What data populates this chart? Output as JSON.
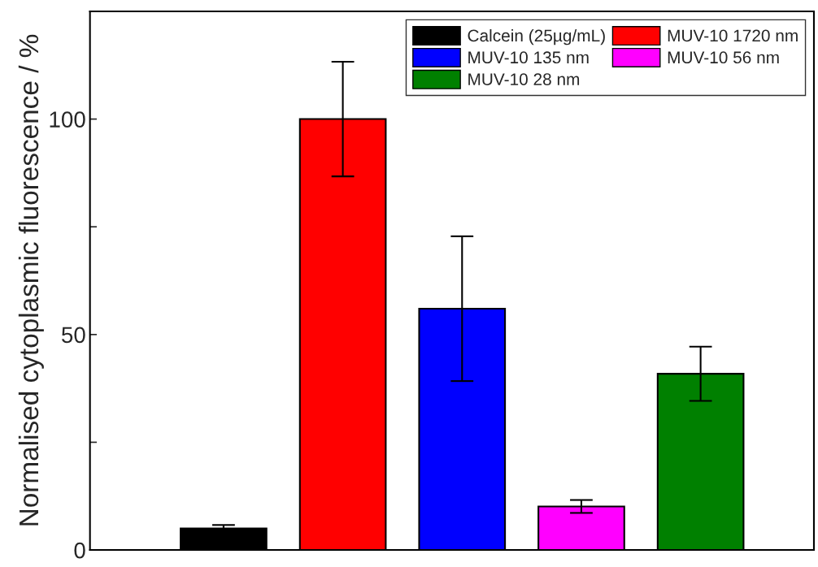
{
  "chart_data": {
    "type": "bar",
    "ylabel": "Normalised cytoplasmic fluorescence / %",
    "categories": [
      null,
      null,
      null,
      null,
      null
    ],
    "series": [
      {
        "name": "Calcein (25µg/mL)",
        "color": "#000000",
        "values": [
          5.0,
          null,
          null,
          null,
          null
        ],
        "errors": [
          0.8,
          null,
          null,
          null,
          null
        ]
      },
      {
        "name": "MUV-10 1720 nm",
        "color": "#ff0000",
        "values": [
          null,
          100,
          null,
          null,
          null
        ],
        "errors": [
          null,
          13.3,
          null,
          null,
          null
        ]
      },
      {
        "name": "MUV-10 135 nm",
        "color": "#0000ff",
        "values": [
          null,
          null,
          56.0,
          null,
          null
        ],
        "errors": [
          null,
          null,
          16.8,
          null,
          null
        ]
      },
      {
        "name": "MUV-10 56 nm",
        "color": "#ff00ff",
        "values": [
          null,
          null,
          null,
          10.1,
          null
        ],
        "errors": [
          null,
          null,
          null,
          1.5,
          null
        ]
      },
      {
        "name": "MUV-10 28 nm",
        "color": "#008000",
        "values": [
          null,
          null,
          null,
          null,
          40.9
        ],
        "errors": [
          null,
          null,
          null,
          null,
          6.3
        ]
      }
    ],
    "ylim": [
      0,
      125
    ],
    "yticks": [
      0,
      {
        "value": 25,
        "label": null
      },
      50,
      {
        "value": 75,
        "label": null
      },
      100
    ],
    "grid": false,
    "legend": "top right"
  }
}
